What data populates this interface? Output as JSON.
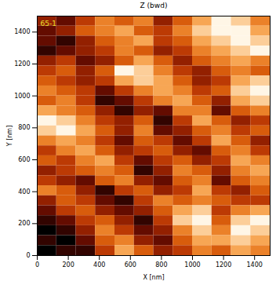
{
  "chart_data": {
    "type": "heatmap",
    "title": "Z (bwd)",
    "annotation": "65-1",
    "x_label": "X [nm]",
    "y_label": "Y [nm]",
    "xlim": [
      0,
      1500
    ],
    "ylim": [
      0,
      1500
    ],
    "xticks": [
      0,
      200,
      400,
      600,
      800,
      1000,
      1200,
      1400
    ],
    "yticks": [
      0,
      200,
      400,
      600,
      800,
      1000,
      1200,
      1400
    ],
    "z_rows_from_top": [
      [
        3,
        2,
        4,
        6,
        5,
        6,
        3,
        5,
        7,
        9,
        8,
        6
      ],
      [
        2,
        3,
        5,
        6,
        7,
        5,
        4,
        6,
        8,
        9,
        9,
        7
      ],
      [
        2,
        1,
        3,
        5,
        6,
        7,
        4,
        5,
        7,
        8,
        9,
        8
      ],
      [
        1,
        2,
        3,
        4,
        6,
        5,
        3,
        4,
        6,
        7,
        8,
        9
      ],
      [
        3,
        4,
        2,
        3,
        5,
        7,
        5,
        3,
        5,
        6,
        7,
        6
      ],
      [
        4,
        5,
        3,
        5,
        9,
        8,
        6,
        4,
        3,
        5,
        6,
        5
      ],
      [
        5,
        4,
        3,
        4,
        7,
        8,
        7,
        5,
        3,
        4,
        7,
        8
      ],
      [
        6,
        5,
        4,
        2,
        4,
        6,
        7,
        6,
        4,
        5,
        8,
        9
      ],
      [
        5,
        6,
        4,
        1,
        2,
        4,
        6,
        7,
        5,
        3,
        7,
        8
      ],
      [
        7,
        6,
        5,
        3,
        1,
        3,
        2,
        6,
        6,
        2,
        5,
        6
      ],
      [
        9,
        8,
        6,
        4,
        3,
        5,
        1,
        4,
        7,
        5,
        3,
        4
      ],
      [
        8,
        9,
        7,
        5,
        3,
        6,
        2,
        3,
        5,
        6,
        4,
        5
      ],
      [
        6,
        7,
        6,
        4,
        2,
        5,
        4,
        2,
        4,
        7,
        5,
        3
      ],
      [
        4,
        6,
        7,
        5,
        3,
        4,
        5,
        3,
        2,
        5,
        6,
        4
      ],
      [
        5,
        4,
        6,
        7,
        4,
        2,
        4,
        5,
        3,
        4,
        7,
        6
      ],
      [
        3,
        4,
        5,
        6,
        5,
        1,
        3,
        6,
        5,
        3,
        6,
        7
      ],
      [
        4,
        3,
        2,
        5,
        6,
        3,
        2,
        5,
        6,
        2,
        5,
        6
      ],
      [
        6,
        5,
        3,
        1,
        4,
        5,
        3,
        4,
        7,
        4,
        3,
        5
      ],
      [
        3,
        5,
        4,
        2,
        1,
        4,
        6,
        5,
        6,
        5,
        4,
        4
      ],
      [
        2,
        4,
        5,
        3,
        2,
        3,
        5,
        7,
        8,
        4,
        6,
        7
      ],
      [
        1,
        2,
        4,
        5,
        3,
        1,
        4,
        8,
        9,
        5,
        8,
        9
      ],
      [
        0,
        1,
        3,
        6,
        4,
        2,
        3,
        6,
        8,
        6,
        9,
        8
      ],
      [
        1,
        0,
        2,
        5,
        6,
        3,
        2,
        5,
        7,
        7,
        8,
        7
      ],
      [
        0,
        1,
        1,
        4,
        7,
        5,
        3,
        4,
        6,
        5,
        7,
        6
      ]
    ],
    "grid": false
  }
}
